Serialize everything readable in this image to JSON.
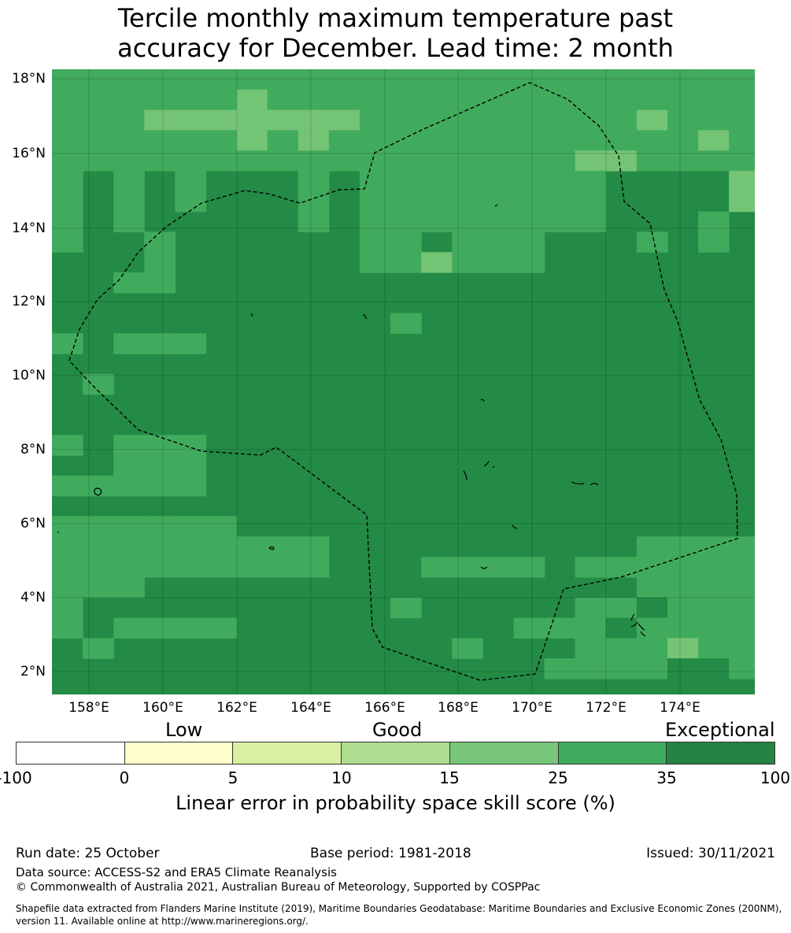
{
  "title_line1": "Tercile monthly maximum temperature past",
  "title_line2": "accuracy for December. Lead time: 2 month",
  "map": {
    "lat_labels": [
      "18°N",
      "16°N",
      "14°N",
      "12°N",
      "10°N",
      "8°N",
      "6°N",
      "4°N",
      "2°N"
    ],
    "lon_labels": [
      "158°E",
      "160°E",
      "162°E",
      "164°E",
      "166°E",
      "168°E",
      "170°E",
      "172°E",
      "174°E"
    ],
    "colors": {
      "c1": "#238b45",
      "c2": "#41ab5d",
      "c3": "#74c476",
      "c4": "#a1d99b"
    }
  },
  "legend": {
    "categories": [
      "Low",
      "Good",
      "Exceptional"
    ],
    "ticks": [
      "-100",
      "0",
      "5",
      "10",
      "15",
      "25",
      "35",
      "100"
    ],
    "colors": [
      "#ffffff",
      "#ffffcc",
      "#d9f0a3",
      "#addd8e",
      "#78c679",
      "#41ab5d",
      "#238443"
    ],
    "title": "Linear error in probability space skill score (%)"
  },
  "footer": {
    "run_date": "Run date: 25 October",
    "base_period": "Base period: 1981-2018",
    "issued": "Issued: 30/11/2021",
    "data_source": "Data source: ACCESS-S2 and ERA5 Climate Reanalysis",
    "copyright": "© Commonwealth of Australia 2021, Australian Bureau of Meteorology, Supported by COSPPac",
    "shapefile_line1": "Shapefile data extracted from Flanders Marine Institute (2019), Maritime Boundaries Geodatabase: Maritime Boundaries and Exclusive Economic Zones (200NM),",
    "shapefile_line2": "version 11. Available online at http://www.marineregions.org/."
  }
}
